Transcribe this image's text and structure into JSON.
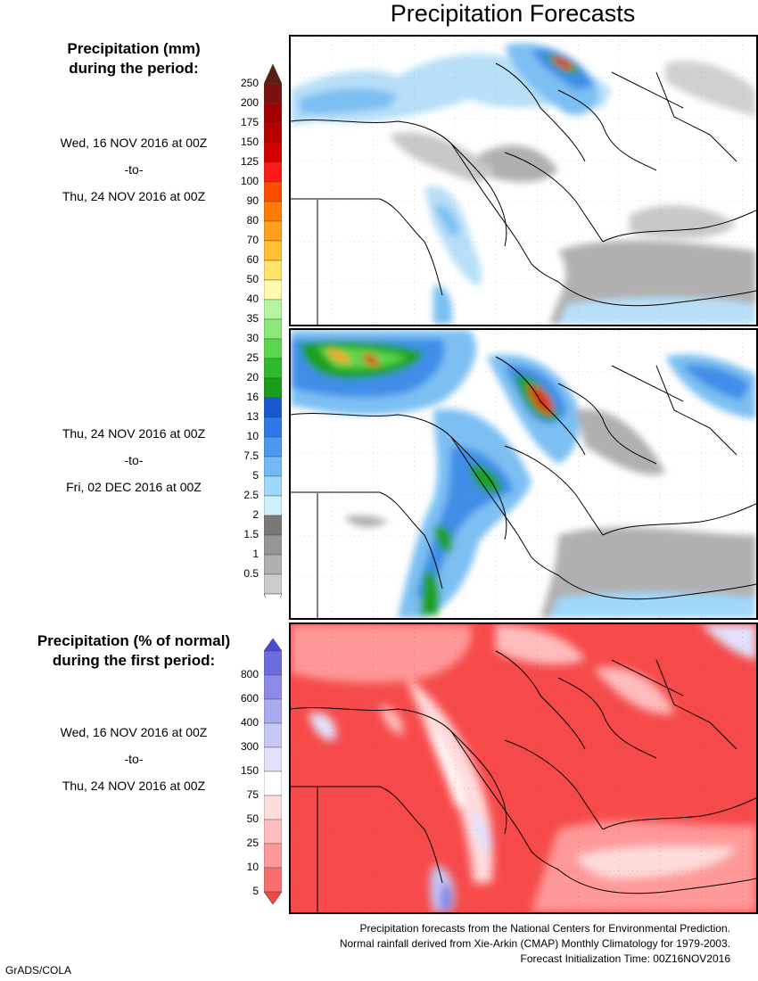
{
  "title": "Precipitation Forecasts",
  "section1": {
    "heading_line1": "Precipitation (mm)",
    "heading_line2": "during the period:"
  },
  "period1": {
    "start": "Wed, 16 NOV 2016 at 00Z",
    "to": "-to-",
    "end": "Thu, 24 NOV 2016 at 00Z"
  },
  "period2": {
    "start": "Thu, 24 NOV 2016 at 00Z",
    "to": "-to-",
    "end": "Fri, 02 DEC 2016 at 00Z"
  },
  "section3": {
    "heading_line1": "Precipitation (% of normal)",
    "heading_line2": "during the first period:"
  },
  "period3": {
    "start": "Wed, 16 NOV 2016 at 00Z",
    "to": "-to-",
    "end": "Thu, 24 NOV 2016 at 00Z"
  },
  "legend_mm": {
    "labels": [
      "250",
      "200",
      "175",
      "150",
      "125",
      "100",
      "90",
      "80",
      "70",
      "60",
      "50",
      "40",
      "35",
      "30",
      "25",
      "20",
      "16",
      "13",
      "10",
      "7.5",
      "5",
      "2.5",
      "2",
      "1.5",
      "1",
      "0.5"
    ],
    "colors": [
      "#7a1010",
      "#a00000",
      "#b70000",
      "#d40000",
      "#ff1a1a",
      "#ff4d00",
      "#ff7c00",
      "#ff9f1c",
      "#ffc034",
      "#ffe36b",
      "#fffaaf",
      "#b4f5a0",
      "#8ce878",
      "#5ad64c",
      "#2fba2d",
      "#1a9e1a",
      "#1a58d0",
      "#2f78e6",
      "#4d97f0",
      "#73b8f7",
      "#a0d8fb",
      "#cef0fd",
      "#787878",
      "#969696",
      "#b0b0b0",
      "#cccccc"
    ],
    "top_color": "#5a1e14"
  },
  "legend_pct": {
    "labels": [
      "800",
      "600",
      "400",
      "300",
      "150",
      "75",
      "50",
      "25",
      "10",
      "5"
    ],
    "colors": [
      "#6c6ce0",
      "#8c8ce8",
      "#aaaaf0",
      "#c8c8f6",
      "#e2e2fb",
      "#ffffff",
      "#ffdcdc",
      "#ffbcbc",
      "#ff9898",
      "#f86e6e"
    ],
    "top_color": "#4a4ad8",
    "bottom_color": "#f04848"
  },
  "footer": {
    "line1": "Precipitation forecasts from the National Centers for Environmental Prediction.",
    "line2": "Normal rainfall derived from Xie-Arkin (CMAP) Monthly Climatology for 1979-2003.",
    "line3": "Forecast Initialization Time: 00Z16NOV2016"
  },
  "credit": "GrADS/COLA"
}
